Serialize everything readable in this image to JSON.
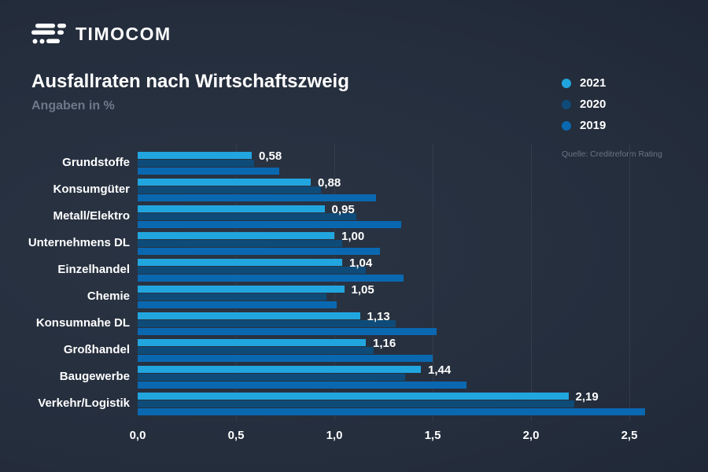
{
  "logo": {
    "brand": "TIMOCOM"
  },
  "header": {
    "title": "Ausfallraten nach Wirtschaftszweig",
    "subtitle": "Angaben in %"
  },
  "legend": {
    "items": [
      {
        "label": "2021",
        "color": "#21a5df"
      },
      {
        "label": "2020",
        "color": "#0e4b78"
      },
      {
        "label": "2019",
        "color": "#0a68b1"
      }
    ]
  },
  "source": "Quelle: Creditreform Rating",
  "colors": {
    "background": "#242d3c",
    "accent_2021": "#21a5df",
    "accent_2020": "#0e4b78",
    "accent_2019": "#0a68b1",
    "gridline": "#323c4b",
    "text": "#ffffff",
    "muted_text": "#6f7889"
  },
  "chart_data": {
    "type": "bar",
    "orientation": "horizontal",
    "title": "Ausfallraten nach Wirtschaftszweig",
    "subtitle": "Angaben in %",
    "unit": "%",
    "source": "Quelle: Creditreform Rating",
    "categories": [
      "Grundstoffe",
      "Konsumgüter",
      "Metall/Elektro",
      "Unternehmens DL",
      "Einzelhandel",
      "Chemie",
      "Konsumnahe DL",
      "Großhandel",
      "Baugewerbe",
      "Verkehr/Logistik"
    ],
    "series": [
      {
        "name": "2021",
        "color": "#21a5df",
        "values": [
          0.58,
          0.88,
          0.95,
          1.0,
          1.04,
          1.05,
          1.13,
          1.16,
          1.44,
          2.19
        ],
        "labels": [
          "0,58",
          "0,88",
          "0,95",
          "1,00",
          "1,04",
          "1,05",
          "1,13",
          "1,16",
          "1,44",
          "2,19"
        ]
      },
      {
        "name": "2020",
        "color": "#0e4b78",
        "values": [
          0.59,
          0.93,
          1.11,
          1.04,
          1.16,
          0.96,
          1.31,
          1.2,
          1.36,
          2.22
        ]
      },
      {
        "name": "2019",
        "color": "#0a68b1",
        "values": [
          0.72,
          1.21,
          1.34,
          1.23,
          1.35,
          1.01,
          1.52,
          1.5,
          1.67,
          2.58
        ]
      }
    ],
    "xlim": [
      0,
      2.5
    ],
    "xticks": [
      "0,0",
      "0,5",
      "1,0",
      "1,5",
      "2,0",
      "2,5"
    ],
    "xtick_values": [
      0.0,
      0.5,
      1.0,
      1.5,
      2.0,
      2.5
    ],
    "grid": "vertical",
    "legend_position": "top-right",
    "value_labels_series": "2021"
  }
}
